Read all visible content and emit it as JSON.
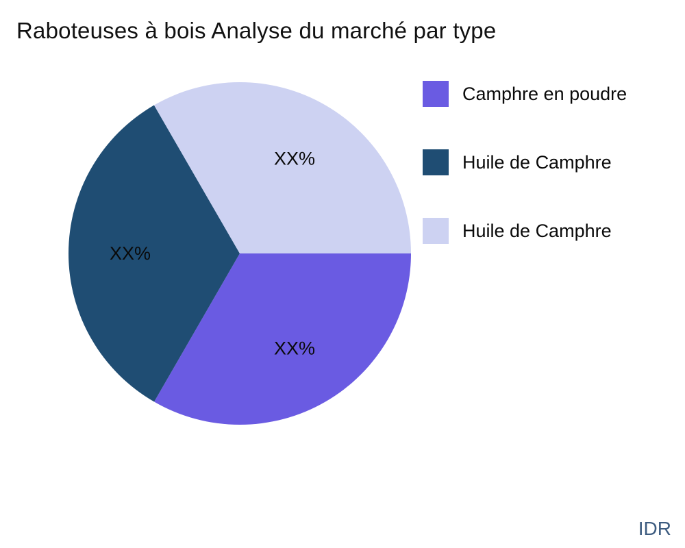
{
  "title": "Raboteuses à bois Analyse du marché par type",
  "watermark": "IDR",
  "colors": {
    "background": "#ffffff",
    "title_text": "#111111",
    "label_text": "#0a0a0a",
    "watermark_text": "#3d5c80"
  },
  "chart_data": {
    "type": "pie",
    "title": "Raboteuses à bois Analyse du marché par type",
    "start_angle_deg": 0,
    "direction": "clockwise",
    "legend_position": "right",
    "slices": [
      {
        "name": "Camphre en poudre",
        "label": "XX%",
        "value": 33.33,
        "color": "#6a5be2"
      },
      {
        "name": "Huile de Camphre",
        "label": "XX%",
        "value": 33.33,
        "color": "#1f4d73"
      },
      {
        "name": "Huile de Camphre",
        "label": "XX%",
        "value": 33.34,
        "color": "#cdd2f2"
      }
    ],
    "legend": [
      "Camphre en poudre",
      "Huile de Camphre",
      "Huile de Camphre"
    ]
  }
}
